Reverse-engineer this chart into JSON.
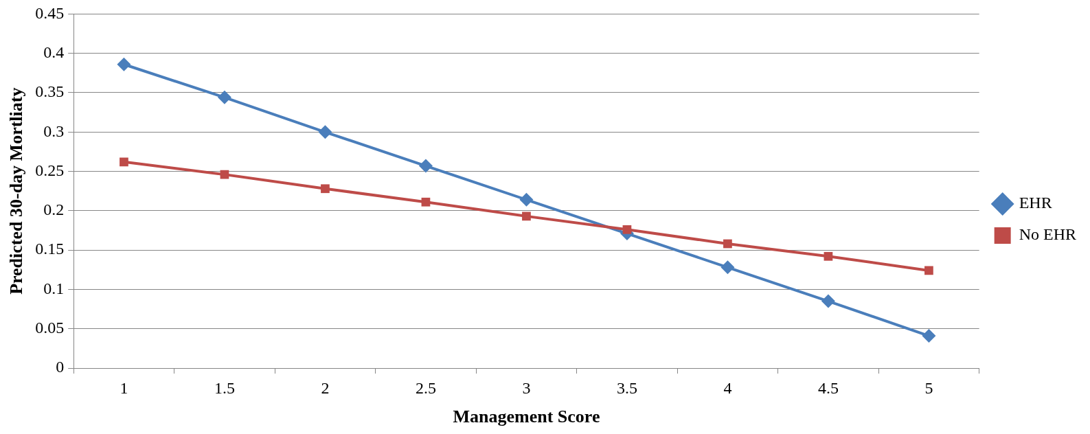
{
  "chart_data": {
    "type": "line",
    "xlabel": "Management Score",
    "ylabel": "Predicted 30-day Mortliaty",
    "categories": [
      "1",
      "1.5",
      "2",
      "2.5",
      "3",
      "3.5",
      "4",
      "4.5",
      "5"
    ],
    "series": [
      {
        "name": "EHR",
        "color": "#4a7ebb",
        "marker": "diamond",
        "values": [
          0.386,
          0.344,
          0.3,
          0.257,
          0.214,
          0.171,
          0.128,
          0.085,
          0.041
        ]
      },
      {
        "name": "No EHR",
        "color": "#be4b48",
        "marker": "square",
        "values": [
          0.262,
          0.246,
          0.228,
          0.211,
          0.193,
          0.176,
          0.158,
          0.142,
          0.124
        ]
      }
    ],
    "ylim": [
      0,
      0.45
    ],
    "yticks": [
      0,
      0.05,
      0.1,
      0.15,
      0.2,
      0.25,
      0.3,
      0.35,
      0.4,
      0.45
    ],
    "grid": "y",
    "legend": "right",
    "line_style": "solid"
  }
}
